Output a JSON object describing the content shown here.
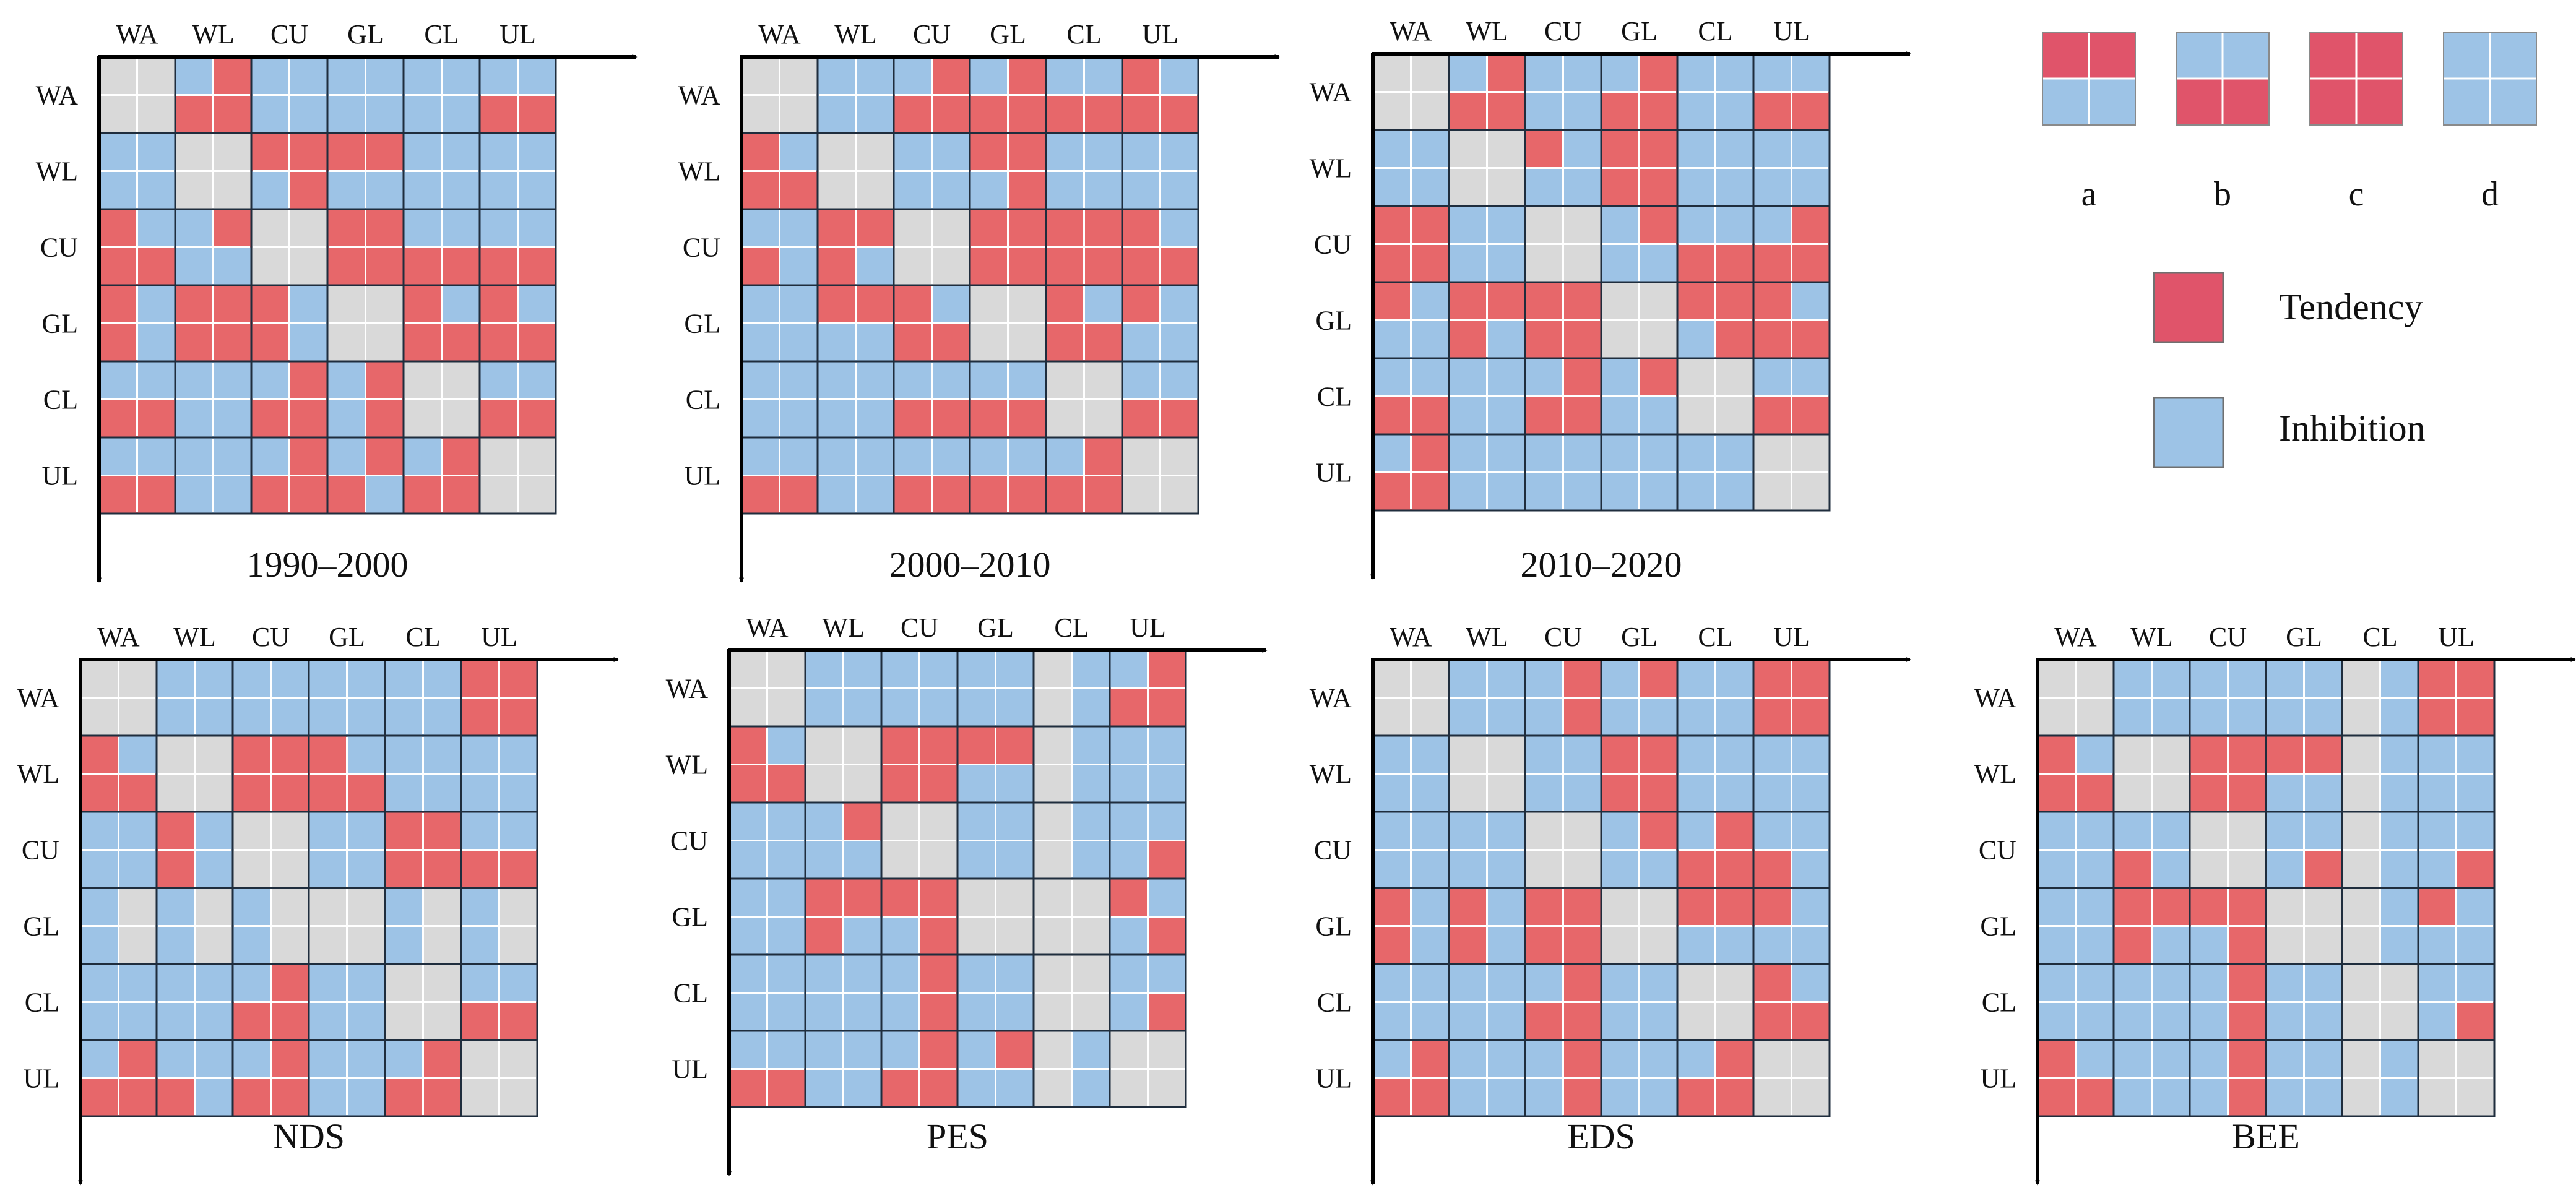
{
  "colors": {
    "tendency": "#E7676A",
    "inhibition": "#9DC3E6",
    "diagonal": "#D9D9D9",
    "legend_tendency": "#E0546A",
    "legend_inhibition": "#9DC3E6",
    "grid_line": "#ffffff",
    "cell_border": "#1f2d3d"
  },
  "legend": {
    "patterns": [
      {
        "code": "a",
        "label": "a",
        "top": "T",
        "bottom": "I"
      },
      {
        "code": "b",
        "label": "b",
        "top": "I",
        "bottom": "T"
      },
      {
        "code": "c",
        "label": "c",
        "top": "T",
        "bottom": "T"
      },
      {
        "code": "d",
        "label": "d",
        "top": "I",
        "bottom": "I"
      }
    ],
    "tendency_label": "Tendency",
    "inhibition_label": "Inhibition"
  },
  "chart_data": [
    {
      "type": "heatmap",
      "title": "1990–2000",
      "row_labels": [
        "WA",
        "WL",
        "CU",
        "GL",
        "CL",
        "UL"
      ],
      "col_labels": [
        "WA",
        "WL",
        "CU",
        "GL",
        "CL",
        "UL"
      ],
      "cells": [
        [
          "DDDD",
          "IT/TT",
          "II/II",
          "II/II",
          "II/II",
          "II/TT"
        ],
        [
          "II/II",
          "DDDD",
          "TT/IT",
          "TT/II",
          "II/II",
          "II/II"
        ],
        [
          "TI/TT",
          "IT/II",
          "DDDD",
          "TT/TT",
          "II/TT",
          "II/TT"
        ],
        [
          "TI/TI",
          "TT/TT",
          "TI/TI",
          "DDDD",
          "TI/TT",
          "TI/TT"
        ],
        [
          "II/TT",
          "II/II",
          "IT/TT",
          "IT/IT",
          "DDDD",
          "II/TT"
        ],
        [
          "II/TT",
          "II/II",
          "IT/TT",
          "IT/TI",
          "IT/TT",
          "DDDD"
        ]
      ]
    },
    {
      "type": "heatmap",
      "title": "2000–2010",
      "row_labels": [
        "WA",
        "WL",
        "CU",
        "GL",
        "CL",
        "UL"
      ],
      "col_labels": [
        "WA",
        "WL",
        "CU",
        "GL",
        "CL",
        "UL"
      ],
      "cells": [
        [
          "DDDD",
          "II/II",
          "IT/TT",
          "IT/TT",
          "II/TT",
          "TI/TT"
        ],
        [
          "TI/TT",
          "DDDD",
          "II/II",
          "TT/IT",
          "II/II",
          "II/II"
        ],
        [
          "II/TI",
          "TT/TI",
          "DDDD",
          "TT/TT",
          "TT/TT",
          "TI/TT"
        ],
        [
          "II/II",
          "TT/II",
          "TI/TT",
          "DDDD",
          "TI/TT",
          "TI/II"
        ],
        [
          "II/II",
          "II/II",
          "II/TT",
          "II/TT",
          "DDDD",
          "II/TT"
        ],
        [
          "II/TT",
          "II/II",
          "II/TT",
          "II/TT",
          "IT/TT",
          "DDDD"
        ]
      ]
    },
    {
      "type": "heatmap",
      "title": "2010–2020",
      "row_labels": [
        "WA",
        "WL",
        "CU",
        "GL",
        "CL",
        "UL"
      ],
      "col_labels": [
        "WA",
        "WL",
        "CU",
        "GL",
        "CL",
        "UL"
      ],
      "cells": [
        [
          "DDDD",
          "IT/TT",
          "II/II",
          "IT/TT",
          "II/II",
          "II/TT"
        ],
        [
          "II/II",
          "DDDD",
          "TI/II",
          "TT/TT",
          "II/II",
          "II/II"
        ],
        [
          "TT/TT",
          "II/II",
          "DDDD",
          "IT/II",
          "II/TT",
          "IT/TT"
        ],
        [
          "TI/II",
          "TT/TI",
          "TT/TT",
          "DDDD",
          "TT/IT",
          "TI/TT"
        ],
        [
          "II/TT",
          "II/II",
          "IT/TT",
          "IT/II",
          "DDDD",
          "II/TT"
        ],
        [
          "IT/TT",
          "II/II",
          "II/II",
          "II/II",
          "II/II",
          "DDDD"
        ]
      ]
    },
    {
      "type": "heatmap",
      "title": "NDS",
      "row_labels": [
        "WA",
        "WL",
        "CU",
        "GL",
        "CL",
        "UL"
      ],
      "col_labels": [
        "WA",
        "WL",
        "CU",
        "GL",
        "CL",
        "UL"
      ],
      "cells": [
        [
          "DDDD",
          "II/II",
          "II/II",
          "II/II",
          "II/II",
          "TT/TT"
        ],
        [
          "TI/TT",
          "DDDD",
          "TT/TT",
          "TI/TT",
          "II/II",
          "II/II"
        ],
        [
          "II/II",
          "TI/TI",
          "DDDD",
          "II/II",
          "TT/TT",
          "II/TT"
        ],
        [
          "ID/ID",
          "ID/ID",
          "ID/ID",
          "DDDD",
          "ID/ID",
          "ID/ID"
        ],
        [
          "II/II",
          "II/II",
          "IT/TT",
          "II/II",
          "DDDD",
          "II/TT"
        ],
        [
          "IT/TT",
          "II/TI",
          "IT/TT",
          "II/II",
          "IT/TT",
          "DDDD"
        ]
      ]
    },
    {
      "type": "heatmap",
      "title": "PES",
      "row_labels": [
        "WA",
        "WL",
        "CU",
        "GL",
        "CL",
        "UL"
      ],
      "col_labels": [
        "WA",
        "WL",
        "CU",
        "GL",
        "CL",
        "UL"
      ],
      "cells": [
        [
          "DDDD",
          "II/II",
          "II/II",
          "II/II",
          "DI/DI",
          "IT/TT"
        ],
        [
          "TI/TT",
          "DDDD",
          "TT/TT",
          "TT/II",
          "DI/DI",
          "II/II"
        ],
        [
          "II/II",
          "IT/II",
          "DDDD",
          "II/II",
          "DI/DI",
          "II/IT"
        ],
        [
          "II/II",
          "TT/TI",
          "TT/IT",
          "DDDD",
          "DD/DD",
          "TI/IT"
        ],
        [
          "II/II",
          "II/II",
          "IT/IT",
          "II/II",
          "DDDD",
          "II/IT"
        ],
        [
          "II/TT",
          "II/II",
          "IT/TT",
          "IT/II",
          "DI/DI",
          "DDDD"
        ]
      ]
    },
    {
      "type": "heatmap",
      "title": "EDS",
      "row_labels": [
        "WA",
        "WL",
        "CU",
        "GL",
        "CL",
        "UL"
      ],
      "col_labels": [
        "WA",
        "WL",
        "CU",
        "GL",
        "CL",
        "UL"
      ],
      "cells": [
        [
          "DDDD",
          "II/II",
          "IT/IT",
          "IT/II",
          "II/II",
          "TT/TT"
        ],
        [
          "II/II",
          "DDDD",
          "II/II",
          "TT/TT",
          "II/II",
          "II/II"
        ],
        [
          "II/II",
          "II/II",
          "DDDD",
          "IT/II",
          "IT/TT",
          "II/TI"
        ],
        [
          "TI/TI",
          "TI/TI",
          "TT/TT",
          "DDDD",
          "TT/II",
          "TI/II"
        ],
        [
          "II/II",
          "II/II",
          "IT/TT",
          "II/II",
          "DDDD",
          "TI/TT"
        ],
        [
          "IT/TT",
          "II/II",
          "IT/IT",
          "II/II",
          "IT/TT",
          "DDDD"
        ]
      ]
    },
    {
      "type": "heatmap",
      "title": "BEE",
      "row_labels": [
        "WA",
        "WL",
        "CU",
        "GL",
        "CL",
        "UL"
      ],
      "col_labels": [
        "WA",
        "WL",
        "CU",
        "GL",
        "CL",
        "UL"
      ],
      "cells": [
        [
          "DDDD",
          "II/II",
          "II/II",
          "II/II",
          "DI/DI",
          "TT/TT"
        ],
        [
          "TI/TT",
          "DDDD",
          "TT/TT",
          "TT/II",
          "DI/DI",
          "II/II"
        ],
        [
          "II/II",
          "II/TI",
          "DDDD",
          "II/IT",
          "DI/DI",
          "II/IT"
        ],
        [
          "II/II",
          "TT/TI",
          "TT/IT",
          "DDDD",
          "DI/DI",
          "TI/II"
        ],
        [
          "II/II",
          "II/II",
          "IT/IT",
          "II/II",
          "DDDD",
          "II/IT"
        ],
        [
          "TI/TT",
          "II/II",
          "IT/IT",
          "II/II",
          "DI/DI",
          "DDDD"
        ]
      ]
    }
  ]
}
